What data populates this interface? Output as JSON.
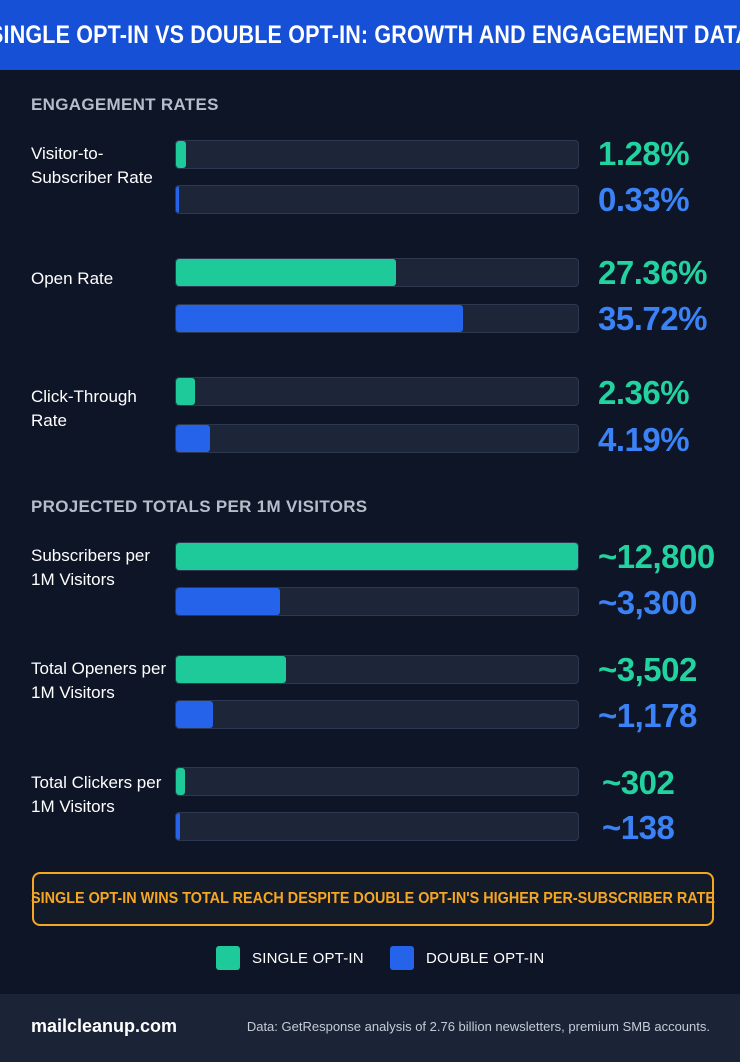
{
  "header": {
    "title": "SINGLE OPT-IN VS DOUBLE OPT-IN: GROWTH AND ENGAGEMENT DATA"
  },
  "sections": {
    "engagement": "ENGAGEMENT RATES",
    "projected": "PROJECTED TOTALS PER 1M VISITORS"
  },
  "chart_data": {
    "type": "bar",
    "title": "SINGLE OPT-IN VS DOUBLE OPT-IN: GROWTH AND ENGAGEMENT DATA",
    "legend_position": "bottom",
    "series_names": [
      "SINGLE OPT-IN",
      "DOUBLE OPT-IN"
    ],
    "groups": [
      {
        "section": "ENGAGEMENT RATES",
        "axis_max": 50,
        "metrics": [
          {
            "label": "Visitor-to-Subscriber Rate",
            "single": 1.28,
            "double": 0.33,
            "single_text": "1.28%",
            "double_text": "0.33%"
          },
          {
            "label": "Open Rate",
            "single": 27.36,
            "double": 35.72,
            "single_text": "27.36%",
            "double_text": "35.72%"
          },
          {
            "label": "Click-Through Rate",
            "single": 2.36,
            "double": 4.19,
            "single_text": "2.36%",
            "double_text": "4.19%"
          }
        ]
      },
      {
        "section": "PROJECTED TOTALS PER 1M VISITORS",
        "axis_max": 12800,
        "metrics": [
          {
            "label": "Subscribers per 1M Visitors",
            "single": 12800,
            "double": 3300,
            "single_text": "~12,800",
            "double_text": "~3,300"
          },
          {
            "label": "Total Openers per 1M Visitors",
            "single": 3502,
            "double": 1178,
            "single_text": "~3,502",
            "double_text": "~1,178"
          },
          {
            "label": "Total Clickers per 1M Visitors",
            "single": 302,
            "double": 138,
            "single_text": "~302",
            "double_text": "~138"
          }
        ]
      }
    ]
  },
  "rows": {
    "visitor": {
      "label": "Visitor-to-Subscriber Rate",
      "single": "1.28%",
      "double": "0.33%"
    },
    "open": {
      "label": "Open Rate",
      "single": "27.36%",
      "double": "35.72%"
    },
    "ctr": {
      "label": "Click-Through Rate",
      "single": "2.36%",
      "double": "4.19%"
    },
    "subscribers": {
      "label": "Subscribers per 1M Visitors",
      "single": "~12,800",
      "double": "~3,300"
    },
    "openers": {
      "label": "Total Openers per 1M Visitors",
      "single": "~3,502",
      "double": "~1,178"
    },
    "clickers": {
      "label": "Total Clickers per 1M Visitors",
      "single": "~302",
      "double": "~138"
    }
  },
  "banner": {
    "text": "SINGLE OPT-IN WINS TOTAL REACH DESPITE DOUBLE OPT-IN'S HIGHER PER-SUBSCRIBER RATE"
  },
  "legend": {
    "single": "SINGLE OPT-IN",
    "double": "DOUBLE OPT-IN"
  },
  "colors": {
    "single": "#1ec99a",
    "double": "#2563eb",
    "accent": "#f5a623",
    "header": "#1550d6"
  },
  "footer": {
    "brand": "mailcleanup.com",
    "source": "Data: GetResponse analysis of 2.76 billion newsletters, premium SMB accounts."
  }
}
